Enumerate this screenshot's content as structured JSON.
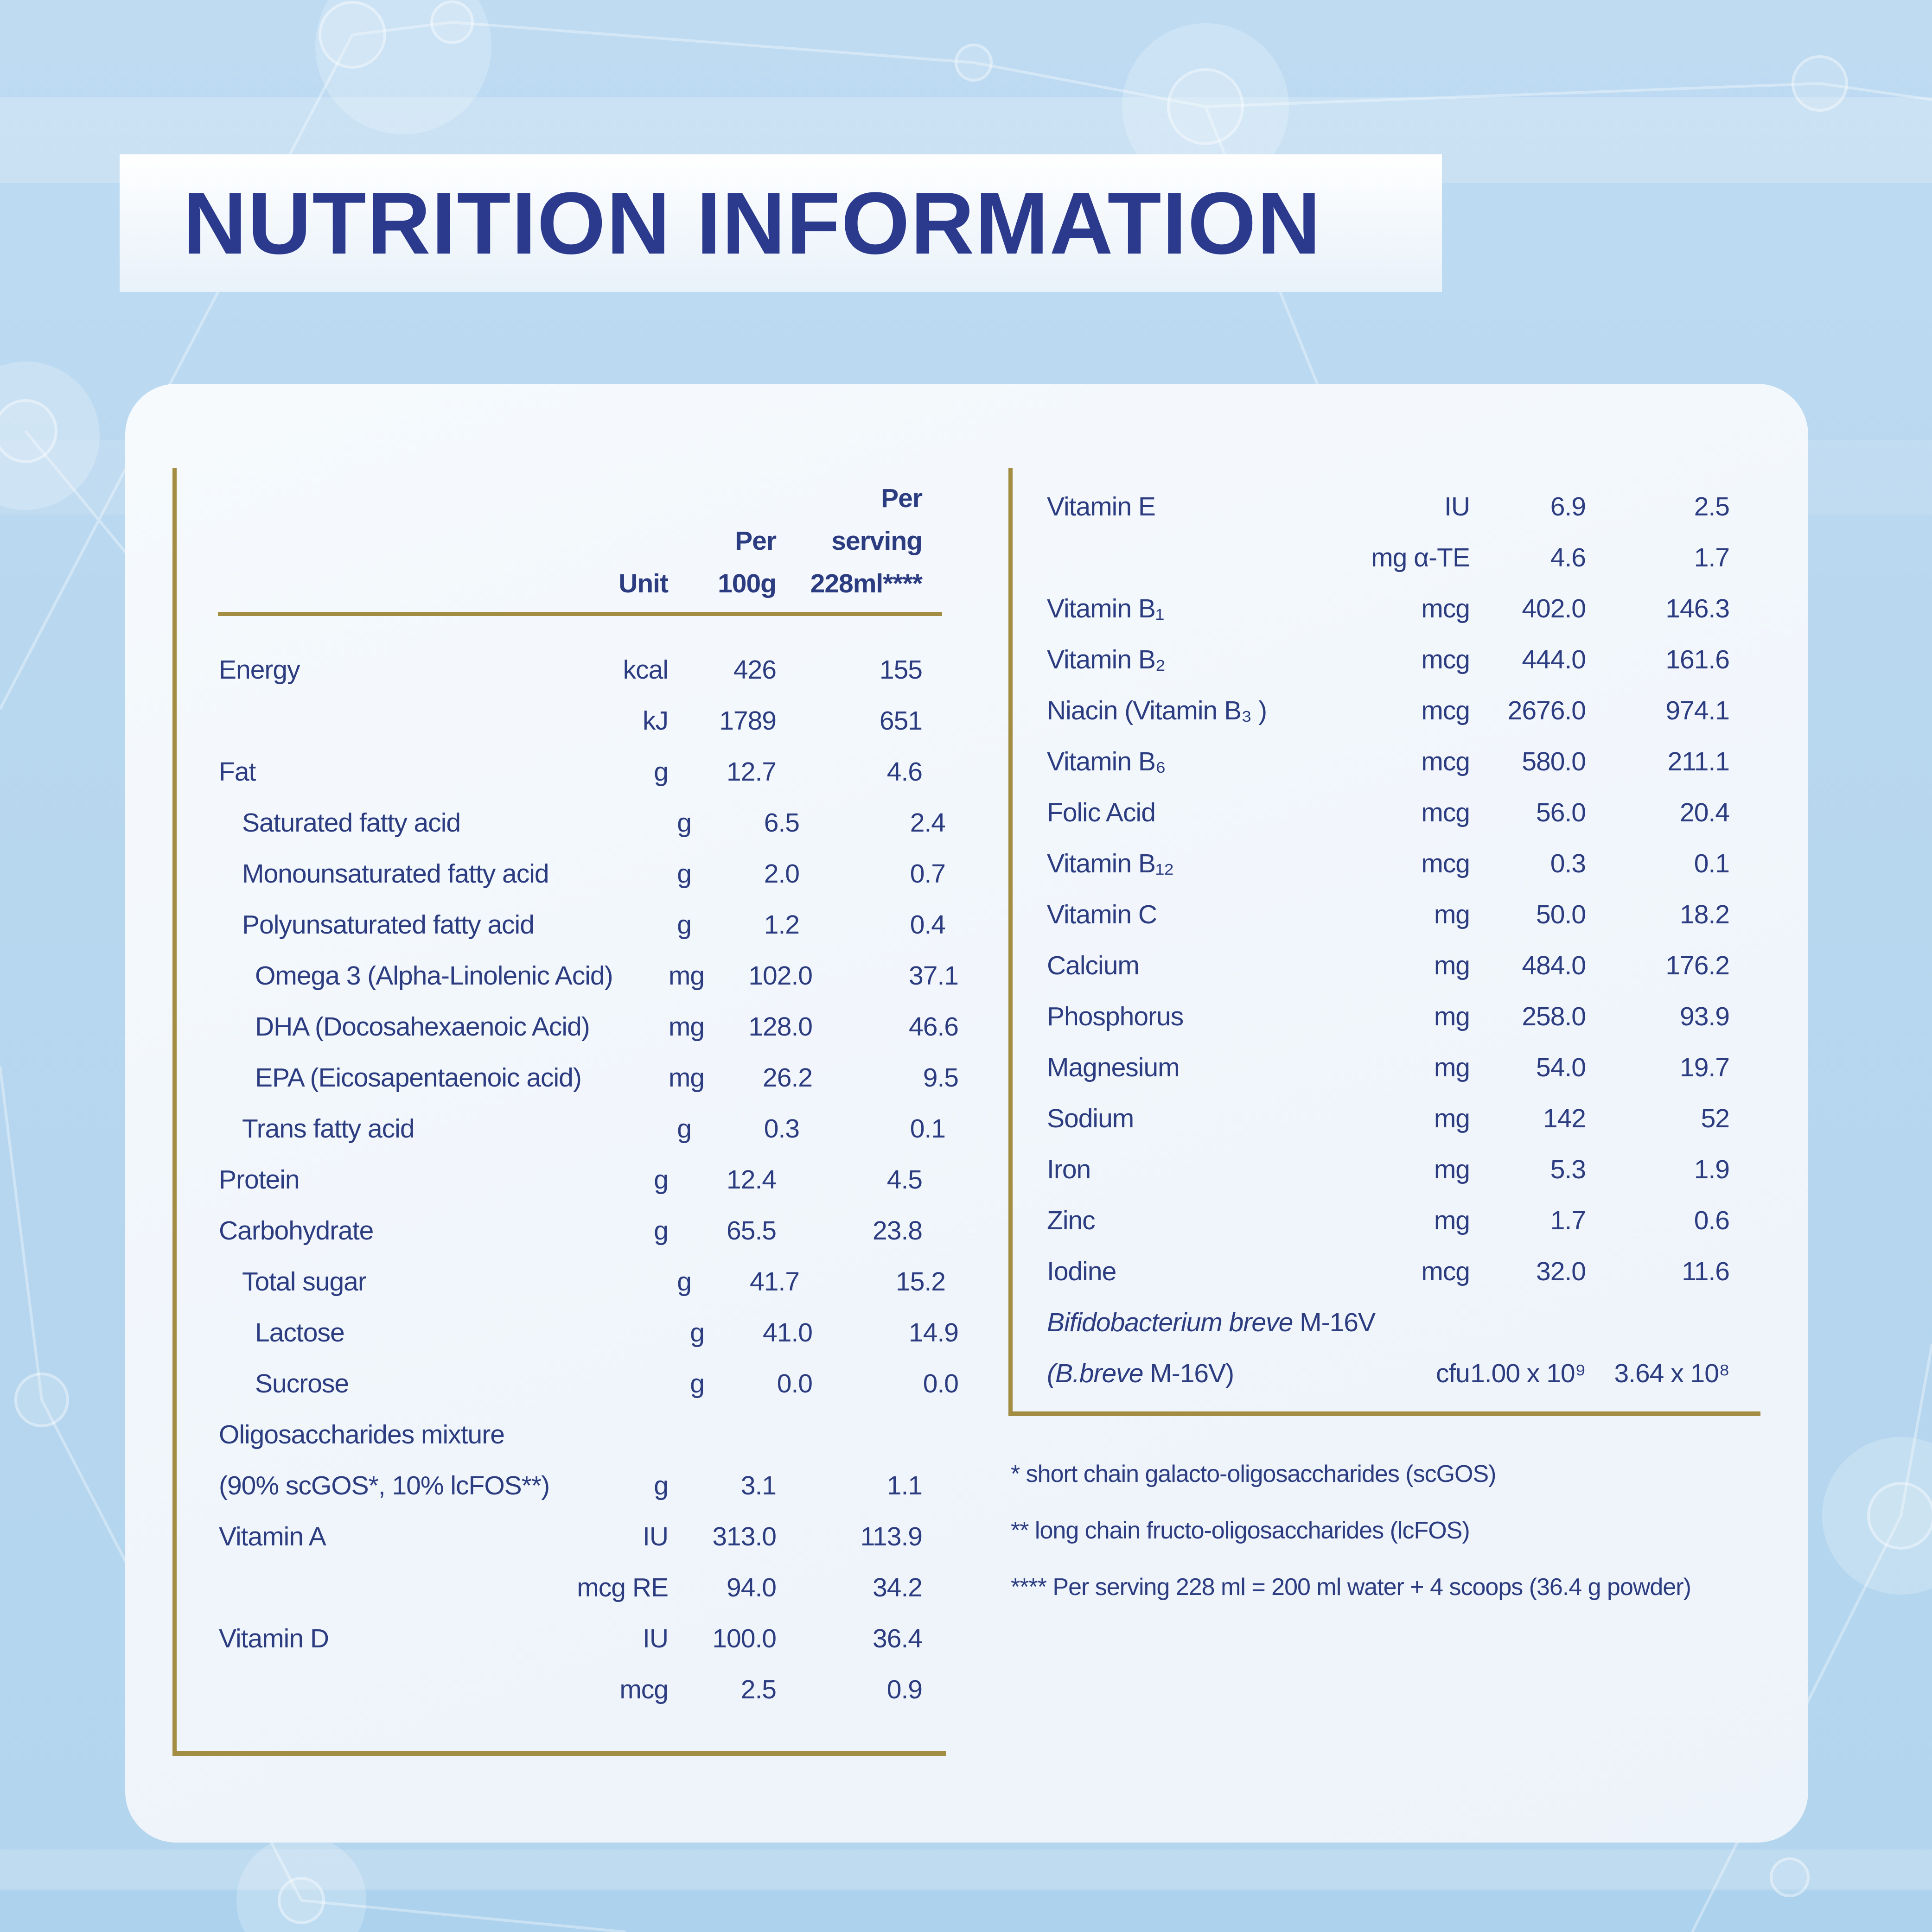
{
  "title": "NUTRITION INFORMATION",
  "colors": {
    "page_background": "#b9d8ef",
    "card_background": "#f3f7fb",
    "banner_background": "#fafdff",
    "title_navy": "#2b3a8c",
    "table_text_navy": "#2c3c80",
    "gold_rule": "#a28d42"
  },
  "table_header": {
    "unit": "Unit",
    "per_100g_line1": "Per",
    "per_100g_line2": "100g",
    "per_serving_line1": "Per",
    "per_serving_line2": "serving",
    "per_serving_line3": "228ml****"
  },
  "left_rows": [
    {
      "label": "Energy",
      "indent": 0,
      "unit": "kcal",
      "per100g": "426",
      "per_serving": "155"
    },
    {
      "label": "",
      "indent": 0,
      "unit": "kJ",
      "per100g": "1789",
      "per_serving": "651"
    },
    {
      "label": "Fat",
      "indent": 0,
      "unit": "g",
      "per100g": "12.7",
      "per_serving": "4.6"
    },
    {
      "label": "Saturated fatty acid",
      "indent": 1,
      "unit": "g",
      "per100g": "6.5",
      "per_serving": "2.4"
    },
    {
      "label": "Monounsaturated fatty acid",
      "indent": 1,
      "unit": "g",
      "per100g": "2.0",
      "per_serving": "0.7"
    },
    {
      "label": "Polyunsaturated fatty acid",
      "indent": 1,
      "unit": "g",
      "per100g": "1.2",
      "per_serving": "0.4"
    },
    {
      "label": "Omega 3 (Alpha-Linolenic Acid)",
      "indent": 2,
      "unit": "mg",
      "per100g": "102.0",
      "per_serving": "37.1"
    },
    {
      "label": "DHA (Docosahexaenoic Acid)",
      "indent": 2,
      "unit": "mg",
      "per100g": "128.0",
      "per_serving": "46.6"
    },
    {
      "label": "EPA (Eicosapentaenoic acid)",
      "indent": 2,
      "unit": "mg",
      "per100g": "26.2",
      "per_serving": "9.5"
    },
    {
      "label": "Trans fatty acid",
      "indent": 1,
      "unit": "g",
      "per100g": "0.3",
      "per_serving": "0.1"
    },
    {
      "label": "Protein",
      "indent": 0,
      "unit": "g",
      "per100g": "12.4",
      "per_serving": "4.5"
    },
    {
      "label": "Carbohydrate",
      "indent": 0,
      "unit": "g",
      "per100g": "65.5",
      "per_serving": "23.8"
    },
    {
      "label": "Total sugar",
      "indent": 1,
      "unit": "g",
      "per100g": "41.7",
      "per_serving": "15.2"
    },
    {
      "label": "Lactose",
      "indent": 2,
      "unit": "g",
      "per100g": "41.0",
      "per_serving": "14.9"
    },
    {
      "label": "Sucrose",
      "indent": 2,
      "unit": "g",
      "per100g": "0.0",
      "per_serving": "0.0"
    },
    {
      "label": "Oligosaccharides mixture",
      "indent": 0,
      "unit": "",
      "per100g": "",
      "per_serving": ""
    },
    {
      "label": "(90% scGOS*, 10% lcFOS**)",
      "indent": 0,
      "unit": "g",
      "per100g": "3.1",
      "per_serving": "1.1"
    },
    {
      "label": "Vitamin A",
      "indent": 0,
      "unit": "IU",
      "per100g": "313.0",
      "per_serving": "113.9"
    },
    {
      "label": "",
      "indent": 0,
      "unit": "mcg RE",
      "per100g": "94.0",
      "per_serving": "34.2"
    },
    {
      "label": "Vitamin D",
      "indent": 0,
      "unit": "IU",
      "per100g": "100.0",
      "per_serving": "36.4"
    },
    {
      "label": "",
      "indent": 0,
      "unit": "mcg",
      "per100g": "2.5",
      "per_serving": "0.9"
    }
  ],
  "right_rows": [
    {
      "label": "Vitamin E",
      "unit": "IU",
      "per100g": "6.9",
      "per_serving": "2.5"
    },
    {
      "label": "",
      "unit": "mg α-TE",
      "per100g": "4.6",
      "per_serving": "1.7"
    },
    {
      "label": "Vitamin B₁",
      "unit": "mcg",
      "per100g": "402.0",
      "per_serving": "146.3"
    },
    {
      "label": "Vitamin B₂",
      "unit": "mcg",
      "per100g": "444.0",
      "per_serving": "161.6"
    },
    {
      "label": "Niacin (Vitamin B₃ )",
      "unit": "mcg",
      "per100g": "2676.0",
      "per_serving": "974.1"
    },
    {
      "label": "Vitamin B₆",
      "unit": "mcg",
      "per100g": "580.0",
      "per_serving": "211.1"
    },
    {
      "label": "Folic Acid",
      "unit": "mcg",
      "per100g": "56.0",
      "per_serving": "20.4"
    },
    {
      "label": "Vitamin B₁₂",
      "unit": "mcg",
      "per100g": "0.3",
      "per_serving": "0.1"
    },
    {
      "label": "Vitamin C",
      "unit": "mg",
      "per100g": "50.0",
      "per_serving": "18.2"
    },
    {
      "label": "Calcium",
      "unit": "mg",
      "per100g": "484.0",
      "per_serving": "176.2"
    },
    {
      "label": "Phosphorus",
      "unit": "mg",
      "per100g": "258.0",
      "per_serving": "93.9"
    },
    {
      "label": "Magnesium",
      "unit": "mg",
      "per100g": "54.0",
      "per_serving": "19.7"
    },
    {
      "label": "Sodium",
      "unit": "mg",
      "per100g": "142",
      "per_serving": "52"
    },
    {
      "label": "Iron",
      "unit": "mg",
      "per100g": "5.3",
      "per_serving": "1.9"
    },
    {
      "label": "Zinc",
      "unit": "mg",
      "per100g": "1.7",
      "per_serving": "0.6"
    },
    {
      "label": "Iodine",
      "unit": "mcg",
      "per100g": "32.0",
      "per_serving": "11.6"
    },
    {
      "label_italic": "Bifidobacterium breve",
      "label": " M-16V",
      "unit": "",
      "per100g": "",
      "per_serving": ""
    },
    {
      "label_italic": "(B.breve",
      "label": " M-16V)",
      "unit": "cfu",
      "per100g": "1.00 x 10⁹",
      "per_serving": "3.64 x 10⁸"
    }
  ],
  "footnotes": [
    "* short chain galacto-oligosaccharides (scGOS)",
    "** long chain fructo-oligosaccharides (lcFOS)",
    "**** Per serving 228 ml = 200 ml water + 4 scoops (36.4 g powder)"
  ]
}
